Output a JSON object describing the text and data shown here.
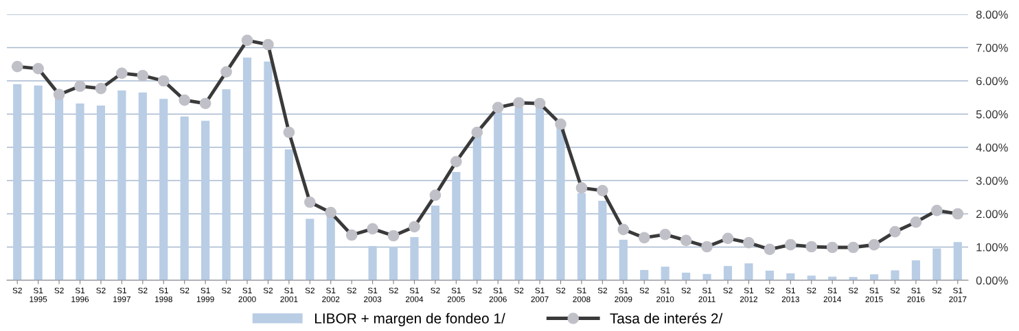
{
  "chart_data": {
    "type": "bar",
    "categories": [
      "S2",
      "S1\n1995",
      "S2",
      "S1\n1996",
      "S2",
      "S1\n1997",
      "S2",
      "S1\n1998",
      "S2",
      "S1\n1999",
      "S2",
      "S1\n2000",
      "S2",
      "S1\n2001",
      "S2",
      "S1\n2002",
      "S2",
      "S1\n2003",
      "S2",
      "S1\n2004",
      "S2",
      "S1\n2005",
      "S2",
      "S1\n2006",
      "S2",
      "S1\n2007",
      "S2",
      "S1\n2008",
      "S2",
      "S1\n2009",
      "S2",
      "S1\n2010",
      "S2",
      "S1\n2011",
      "S2",
      "S1\n2012",
      "S2",
      "S1\n2013",
      "S2",
      "S1\n2014",
      "S2",
      "S1\n2015",
      "S2",
      "S1\n2016",
      "S2",
      "S1\n2017"
    ],
    "series": [
      {
        "name": "LIBOR + margen de fondeo 1/",
        "color": "#b9cde5",
        "values": [
          5.9,
          5.86,
          5.55,
          5.32,
          5.26,
          5.71,
          5.65,
          5.46,
          4.93,
          4.8,
          5.75,
          6.7,
          6.58,
          3.94,
          1.85,
          2.0,
          null,
          1.03,
          1.01,
          1.3,
          2.25,
          3.26,
          4.35,
          5.05,
          5.2,
          5.2,
          4.6,
          2.62,
          2.39,
          1.22,
          0.31,
          0.41,
          0.23,
          0.19,
          0.43,
          0.51,
          0.29,
          0.21,
          0.14,
          0.11,
          0.1,
          0.18,
          0.3,
          0.6,
          0.96,
          1.15
        ]
      },
      {
        "name": "Tasa de interés 2/",
        "type": "line",
        "color": "#3a3a3a",
        "values": [
          6.43,
          6.37,
          5.59,
          5.84,
          5.77,
          6.23,
          6.16,
          6.0,
          5.42,
          5.32,
          6.27,
          7.22,
          7.09,
          4.45,
          2.35,
          2.04,
          1.36,
          1.55,
          1.34,
          1.61,
          2.56,
          3.57,
          4.45,
          5.2,
          5.34,
          5.32,
          4.7,
          2.78,
          2.7,
          1.53,
          1.28,
          1.38,
          1.2,
          1.01,
          1.26,
          1.13,
          0.93,
          1.07,
          1.01,
          0.99,
          0.99,
          1.07,
          1.46,
          1.75,
          2.1,
          2.0
        ]
      }
    ],
    "ylim": [
      0,
      8
    ],
    "yticks": [
      {
        "value": 0,
        "label": "0.00%"
      },
      {
        "value": 1,
        "label": "1.00%"
      },
      {
        "value": 2,
        "label": "2.00%"
      },
      {
        "value": 3,
        "label": "3.00%"
      },
      {
        "value": 4,
        "label": "4.00%"
      },
      {
        "value": 5,
        "label": "5.00%"
      },
      {
        "value": 6,
        "label": "6.00%"
      },
      {
        "value": 7,
        "label": "7.00%"
      },
      {
        "value": 8,
        "label": "8.00%"
      }
    ],
    "grid": "y",
    "legend": "bottom",
    "marker": "circle",
    "line_style": "solid"
  }
}
